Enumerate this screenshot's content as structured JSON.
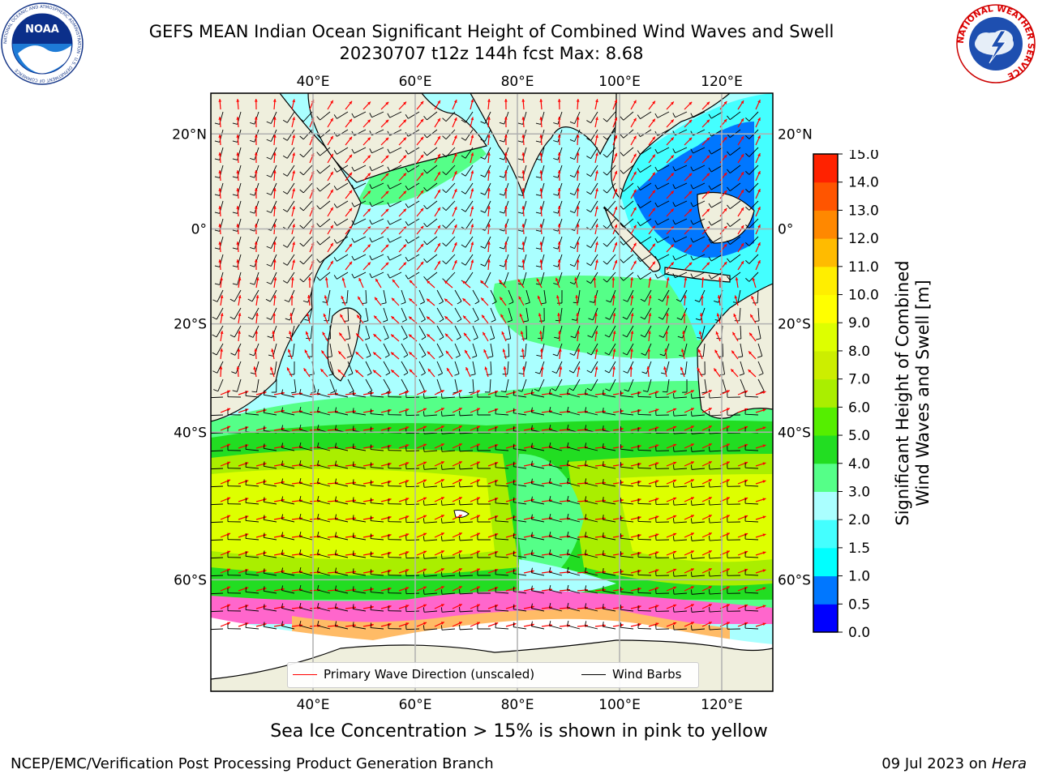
{
  "header": {
    "title_line1": "GEFS MEAN Indian Ocean Significant Height of Combined Wind Waves and Swell",
    "title_line2": "20230707 t12z 144h fcst   Max: 8.68"
  },
  "logos": {
    "noaa": {
      "text": "NOAA",
      "ring_text": "NATIONAL OCEANIC AND ATMOSPHERIC ADMINISTRATION · U.S. DEPARTMENT OF COMMERCE"
    },
    "nws": {
      "ring_text": "NATIONAL WEATHER SERVICE"
    }
  },
  "map": {
    "lon_ticks": [
      "40°E",
      "60°E",
      "80°E",
      "100°E",
      "120°E"
    ],
    "lat_ticks_left": [
      "20°N",
      "0°",
      "20°S",
      "40°S",
      "60°S"
    ],
    "lat_ticks_right": [
      "20°N",
      "0°",
      "20°S",
      "40°S",
      "60°S"
    ],
    "lon_values": [
      40,
      60,
      80,
      100,
      120
    ],
    "lat_values": [
      20,
      0,
      -20,
      -40,
      -60
    ],
    "extent": {
      "lon": [
        20,
        130
      ],
      "lat": [
        -70,
        28
      ]
    },
    "colors": {
      "land": "#efefdd",
      "ice_white": "#ffffff",
      "grid": "#b0b0b0",
      "arrow": "#ff0000",
      "barb": "#000000"
    }
  },
  "legend": {
    "wave_label": "Primary Wave Direction (unscaled)",
    "barb_label": "Wind Barbs",
    "wave_color": "#ff0000",
    "barb_color": "#000000"
  },
  "colorbar": {
    "label_line1": "Significant Height of Combined",
    "label_line2": "Wind Waves and Swell [m]",
    "ticks": [
      "0.0",
      "0.5",
      "1.0",
      "1.5",
      "2.0",
      "3.0",
      "4.0",
      "5.0",
      "6.0",
      "7.0",
      "8.0",
      "9.0",
      "10.0",
      "11.0",
      "12.0",
      "13.0",
      "14.0",
      "15.0"
    ],
    "colors": [
      "#0000ff",
      "#0077ff",
      "#00ffff",
      "#44ffff",
      "#aaffff",
      "#55ff88",
      "#22dd22",
      "#55ee00",
      "#aaee00",
      "#ccee00",
      "#ddff00",
      "#ffff00",
      "#ffee00",
      "#ffbb00",
      "#ff8800",
      "#ff5500",
      "#ff2200",
      "#ff0000"
    ]
  },
  "notes": {
    "ice_note": "Sea Ice Concentration > 15% is shown in pink to yellow"
  },
  "footer": {
    "left": "NCEP/EMC/Verification Post Processing Product Generation Branch",
    "right_date": "09 Jul 2023 on ",
    "right_machine": "Hera"
  }
}
